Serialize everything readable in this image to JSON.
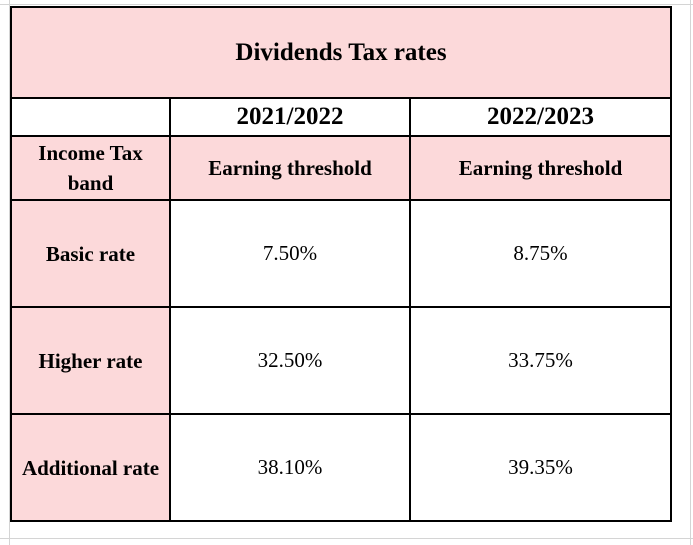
{
  "table": {
    "title": "Dividends Tax rates",
    "years": [
      "2021/2022",
      "2022/2023"
    ],
    "band_header": "Income Tax band",
    "threshold_headers": [
      "Earning threshold",
      "Earning threshold"
    ],
    "rows": [
      {
        "band": "Basic rate",
        "values": [
          "7.50%",
          "8.75%"
        ]
      },
      {
        "band": "Higher rate",
        "values": [
          "32.50%",
          "33.75%"
        ]
      },
      {
        "band": "Additional rate",
        "values": [
          "38.10%",
          "39.35%"
        ]
      }
    ]
  },
  "colors": {
    "header_fill": "#fcd9da",
    "border": "#000000",
    "gridline": "#d4d4d4"
  }
}
